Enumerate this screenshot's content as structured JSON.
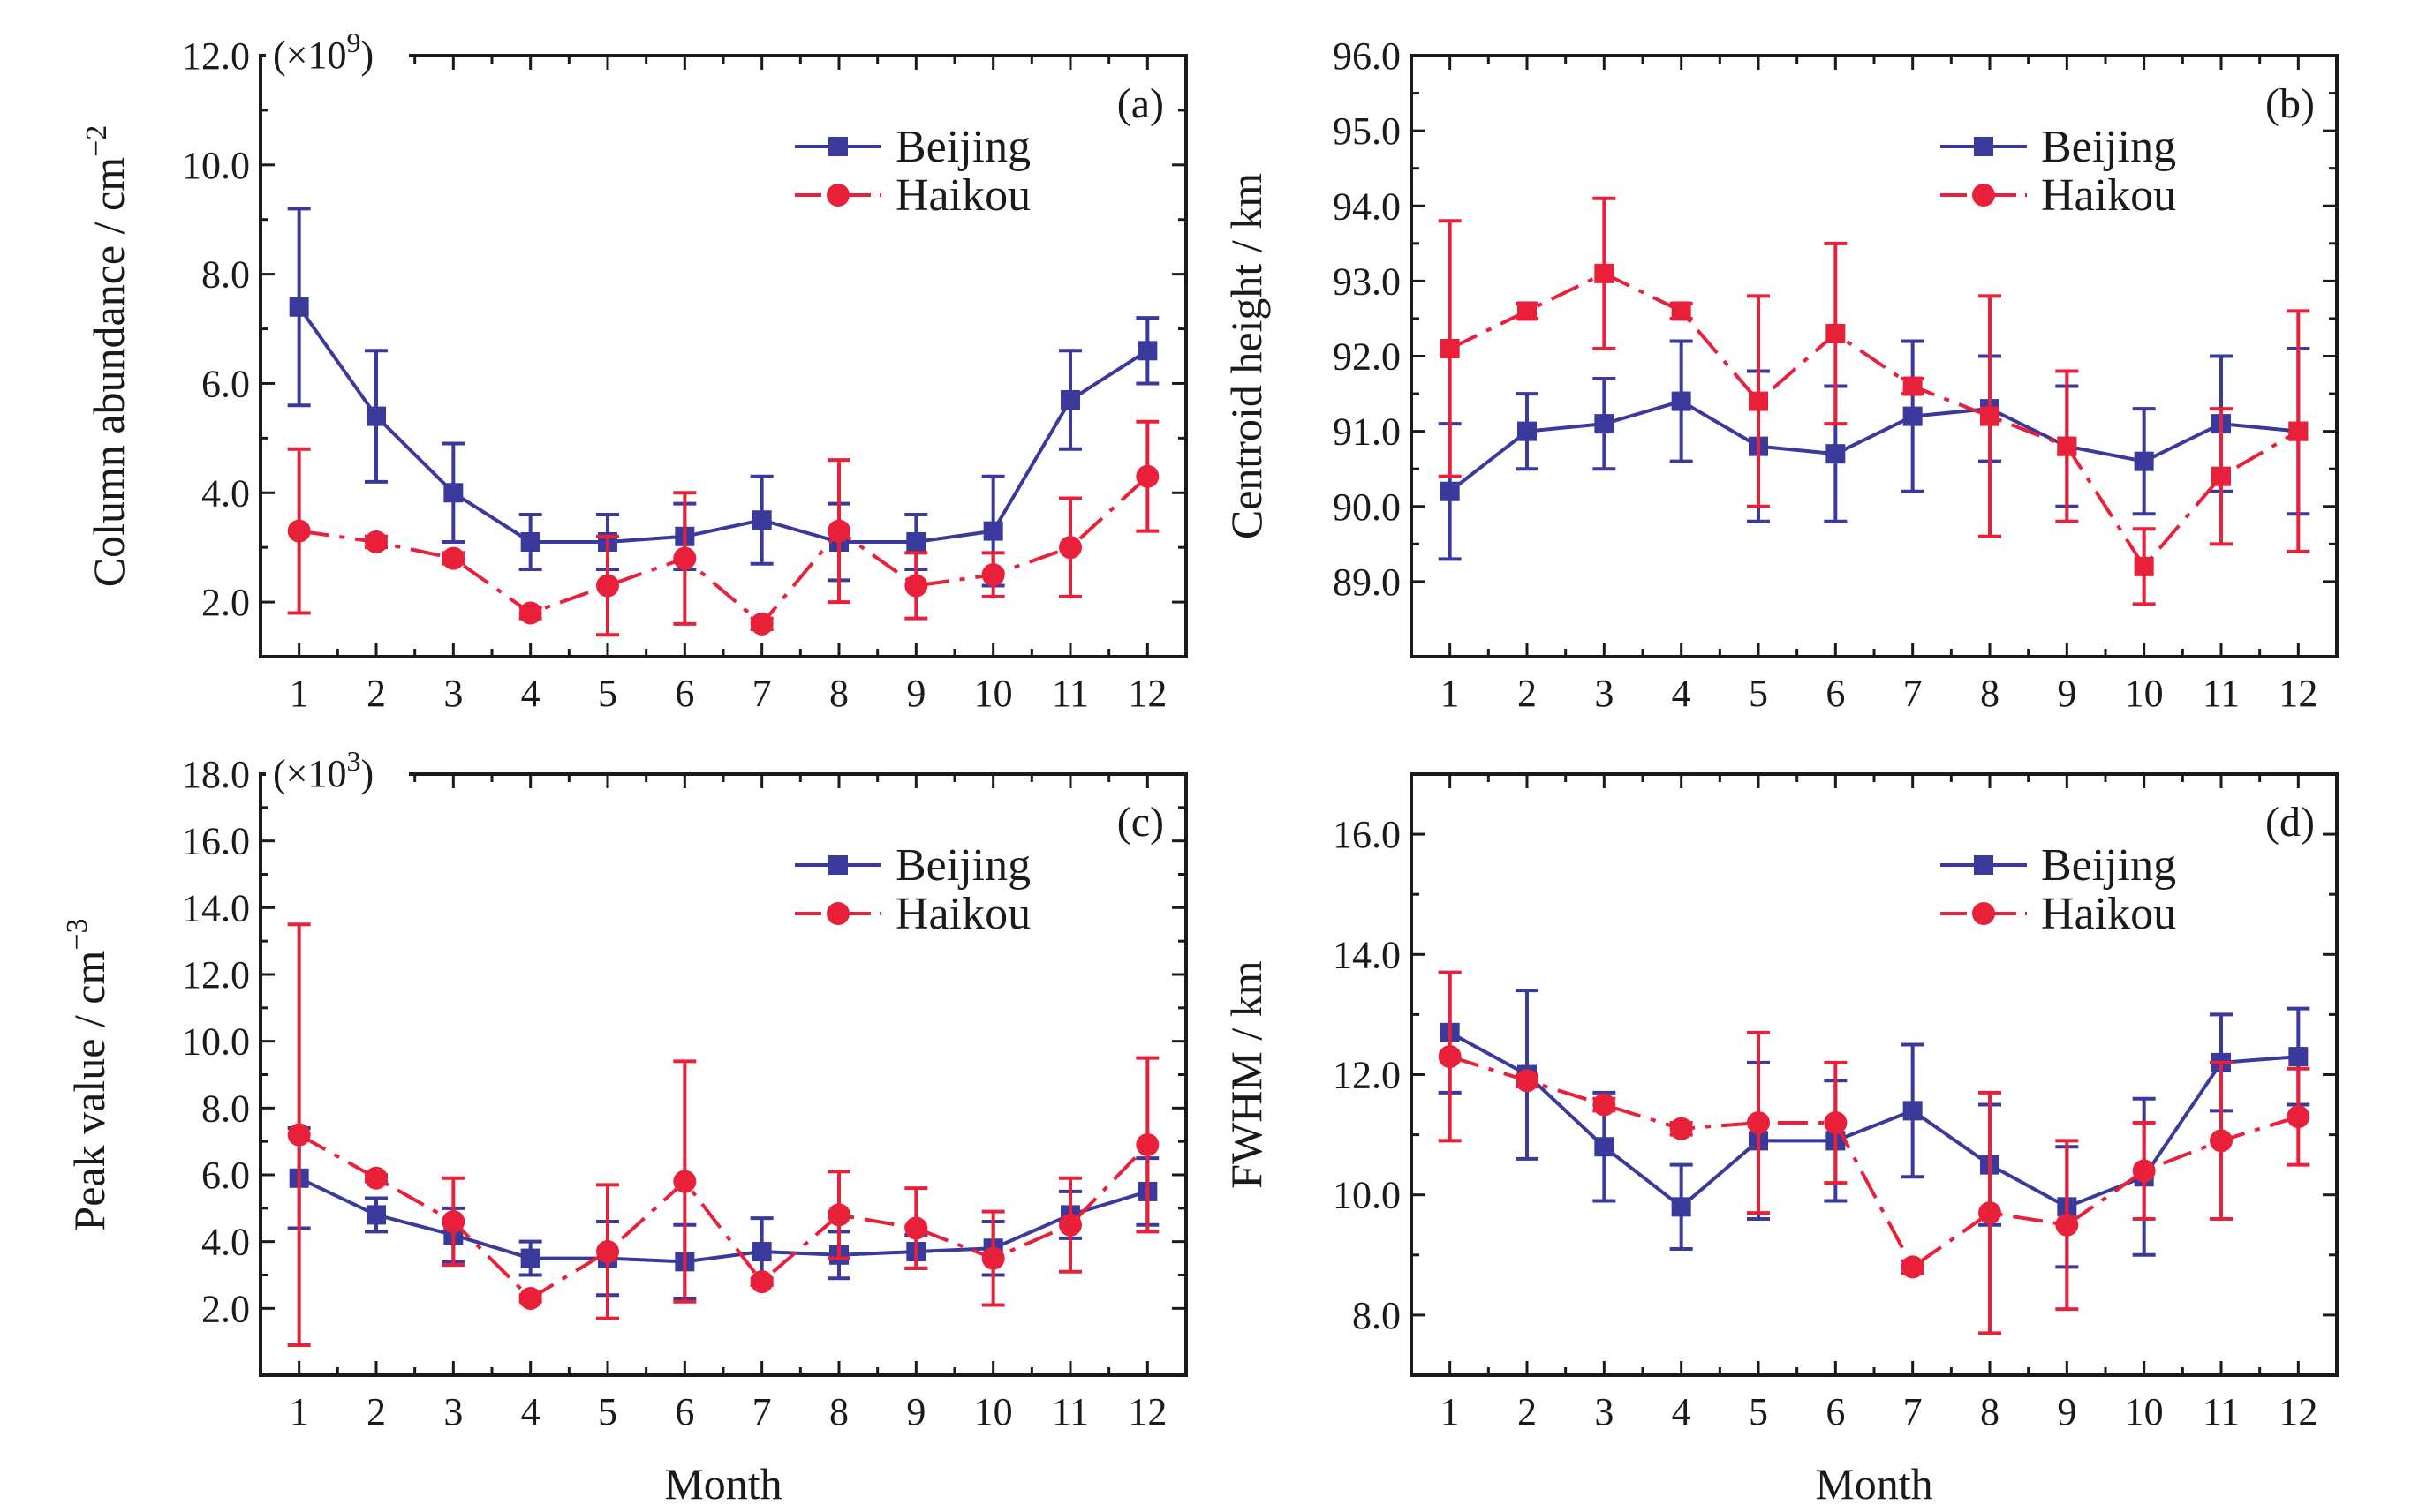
{
  "chart_data": [
    {
      "type": "line",
      "panel_label": "(a)",
      "xlabel": "",
      "ylabel": "Column abundance / cm",
      "ylabel_superscript": "−2",
      "multiplier_text": "(×10",
      "multiplier_exponent": "9",
      "multiplier_close": ")",
      "x": [
        1,
        2,
        3,
        4,
        5,
        6,
        7,
        8,
        9,
        10,
        11,
        12
      ],
      "x_tick_labels": [
        "1",
        "2",
        "3",
        "4",
        "5",
        "6",
        "7",
        "8",
        "9",
        "10",
        "11",
        "12"
      ],
      "xlim": [
        0.5,
        12.5
      ],
      "ylim": [
        1.0,
        12.0
      ],
      "y_ticks": [
        2.0,
        4.0,
        6.0,
        8.0,
        10.0,
        12.0
      ],
      "y_tick_labels": [
        "2.0",
        "4.0",
        "6.0",
        "8.0",
        "10.0",
        "12.0"
      ],
      "legend_position": "top-right",
      "series": [
        {
          "name": "Beijing",
          "color": "#3a3a9c",
          "marker": "square",
          "line": "solid",
          "values": [
            7.4,
            5.4,
            4.0,
            3.1,
            3.1,
            3.2,
            3.5,
            3.1,
            3.1,
            3.3,
            5.7,
            6.6
          ],
          "errors": [
            1.8,
            1.2,
            0.9,
            0.5,
            0.5,
            0.6,
            0.8,
            0.7,
            0.5,
            1.0,
            0.9,
            0.6
          ]
        },
        {
          "name": "Haikou",
          "color": "#e8203a",
          "marker": "circle",
          "line": "dashdot",
          "values": [
            3.3,
            3.1,
            2.8,
            1.8,
            2.3,
            2.8,
            1.6,
            3.3,
            2.3,
            2.5,
            3.0,
            4.3
          ],
          "errors": [
            1.5,
            0.1,
            0.1,
            0.1,
            0.9,
            1.2,
            0.1,
            1.3,
            0.6,
            0.4,
            0.9,
            1.0
          ]
        }
      ]
    },
    {
      "type": "line",
      "panel_label": "(b)",
      "xlabel": "",
      "ylabel": "Centroid height / km",
      "x": [
        1,
        2,
        3,
        4,
        5,
        6,
        7,
        8,
        9,
        10,
        11,
        12
      ],
      "x_tick_labels": [
        "1",
        "2",
        "3",
        "4",
        "5",
        "6",
        "7",
        "8",
        "9",
        "10",
        "11",
        "12"
      ],
      "xlim": [
        0.5,
        12.5
      ],
      "ylim": [
        88.0,
        96.0
      ],
      "y_ticks": [
        89.0,
        90.0,
        91.0,
        92.0,
        93.0,
        94.0,
        95.0,
        96.0
      ],
      "y_tick_labels": [
        "89.0",
        "90.0",
        "91.0",
        "92.0",
        "93.0",
        "94.0",
        "95.0",
        "96.0"
      ],
      "legend_position": "top-right",
      "series": [
        {
          "name": "Beijing",
          "color": "#3a3a9c",
          "marker": "square",
          "line": "solid",
          "values": [
            90.2,
            91.0,
            91.1,
            91.4,
            90.8,
            90.7,
            91.2,
            91.3,
            90.8,
            90.6,
            91.1,
            91.0
          ],
          "errors": [
            0.9,
            0.5,
            0.6,
            0.8,
            1.0,
            0.9,
            1.0,
            0.7,
            0.8,
            0.7,
            0.9,
            1.1
          ]
        },
        {
          "name": "Haikou",
          "color": "#e8203a",
          "marker": "square",
          "line": "dashdot",
          "values": [
            92.1,
            92.6,
            93.1,
            92.6,
            91.4,
            92.3,
            91.6,
            91.2,
            90.8,
            89.2,
            90.4,
            91.0
          ],
          "errors": [
            1.7,
            0.1,
            1.0,
            0.1,
            1.4,
            1.2,
            0.1,
            1.6,
            1.0,
            0.5,
            0.9,
            1.6
          ]
        }
      ]
    },
    {
      "type": "line",
      "panel_label": "(c)",
      "xlabel": "Month",
      "ylabel": "Peak value / cm",
      "ylabel_superscript": "−3",
      "multiplier_text": "(×10",
      "multiplier_exponent": "3",
      "multiplier_close": ")",
      "x": [
        1,
        2,
        3,
        4,
        5,
        6,
        7,
        8,
        9,
        10,
        11,
        12
      ],
      "x_tick_labels": [
        "1",
        "2",
        "3",
        "4",
        "5",
        "6",
        "7",
        "8",
        "9",
        "10",
        "11",
        "12"
      ],
      "xlim": [
        0.5,
        12.5
      ],
      "ylim": [
        0.0,
        18.0
      ],
      "y_ticks": [
        2.0,
        4.0,
        6.0,
        8.0,
        10.0,
        12.0,
        14.0,
        16.0,
        18.0
      ],
      "y_tick_labels": [
        "2.0",
        "4.0",
        "6.0",
        "8.0",
        "10.0",
        "12.0",
        "14.0",
        "16.0",
        "18.0"
      ],
      "legend_position": "top-right",
      "series": [
        {
          "name": "Beijing",
          "color": "#3a3a9c",
          "marker": "square",
          "line": "solid",
          "values": [
            5.9,
            4.8,
            4.2,
            3.5,
            3.5,
            3.4,
            3.7,
            3.6,
            3.7,
            3.8,
            4.8,
            5.5
          ],
          "errors": [
            1.5,
            0.5,
            0.8,
            0.5,
            1.1,
            1.1,
            1.0,
            0.7,
            0.5,
            0.8,
            0.7,
            1.0
          ]
        },
        {
          "name": "Haikou",
          "color": "#e8203a",
          "marker": "circle",
          "line": "dashdot",
          "values": [
            7.2,
            5.9,
            4.6,
            2.3,
            3.7,
            5.8,
            2.8,
            4.8,
            4.4,
            3.5,
            4.5,
            6.9
          ],
          "errors": [
            6.3,
            0.1,
            1.3,
            0.1,
            2.0,
            3.6,
            0.1,
            1.3,
            1.2,
            1.4,
            1.4,
            2.6
          ]
        }
      ]
    },
    {
      "type": "line",
      "panel_label": "(d)",
      "xlabel": "Month",
      "ylabel": "FWHM / km",
      "x": [
        1,
        2,
        3,
        4,
        5,
        6,
        7,
        8,
        9,
        10,
        11,
        12
      ],
      "x_tick_labels": [
        "1",
        "2",
        "3",
        "4",
        "5",
        "6",
        "7",
        "8",
        "9",
        "10",
        "11",
        "12"
      ],
      "xlim": [
        0.5,
        12.5
      ],
      "ylim": [
        7.0,
        17.0
      ],
      "y_ticks": [
        8.0,
        10.0,
        12.0,
        14.0,
        16.0
      ],
      "y_tick_labels": [
        "8.0",
        "10.0",
        "12.0",
        "14.0",
        "16.0"
      ],
      "legend_position": "top-right",
      "series": [
        {
          "name": "Beijing",
          "color": "#3a3a9c",
          "marker": "square",
          "line": "solid",
          "values": [
            12.7,
            12.0,
            10.8,
            9.8,
            10.9,
            10.9,
            11.4,
            10.5,
            9.8,
            10.3,
            12.2,
            12.3
          ],
          "errors": [
            1.0,
            1.4,
            0.9,
            0.7,
            1.3,
            1.0,
            1.1,
            1.0,
            1.0,
            1.3,
            0.8,
            0.8
          ]
        },
        {
          "name": "Haikou",
          "color": "#e8203a",
          "marker": "circle",
          "line": "dashdot",
          "values": [
            12.3,
            11.9,
            11.5,
            11.1,
            11.2,
            11.2,
            8.8,
            9.7,
            9.5,
            10.4,
            10.9,
            11.3
          ],
          "errors": [
            1.4,
            0.1,
            0.1,
            0.1,
            1.5,
            1.0,
            0.1,
            2.0,
            1.4,
            0.8,
            1.3,
            0.8
          ]
        }
      ]
    }
  ]
}
